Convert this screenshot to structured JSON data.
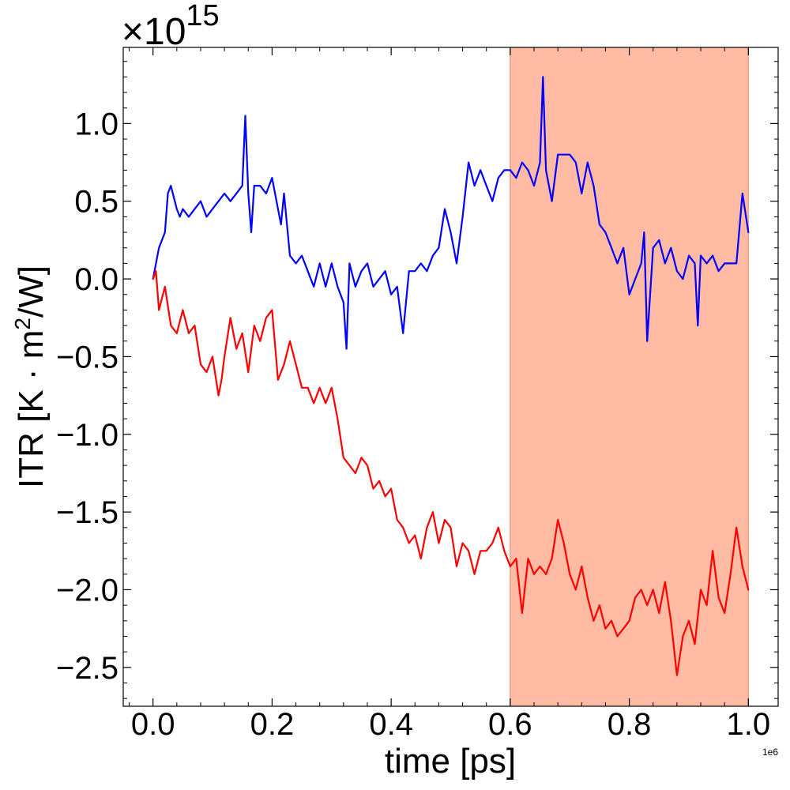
{
  "chart_data": {
    "type": "line",
    "xlabel": "time [ps]",
    "ylabel_main": "ITR [K · m",
    "ylabel_sup": "2",
    "ylabel_tail": "/W]",
    "y_multiplier_base": "×10",
    "y_multiplier_exp": "15",
    "x_offset_text": "1e6",
    "x_ticks": [
      {
        "value": 0.0,
        "label": "0.0"
      },
      {
        "value": 0.2,
        "label": "0.2"
      },
      {
        "value": 0.4,
        "label": "0.4"
      },
      {
        "value": 0.6,
        "label": "0.6"
      },
      {
        "value": 0.8,
        "label": "0.8"
      },
      {
        "value": 1.0,
        "label": "1.0"
      }
    ],
    "y_ticks": [
      {
        "value": 1.0,
        "label": "1.0"
      },
      {
        "value": 0.5,
        "label": "0.5"
      },
      {
        "value": 0.0,
        "label": "0.0"
      },
      {
        "value": -0.5,
        "label": "−0.5"
      },
      {
        "value": -1.0,
        "label": "−1.0"
      },
      {
        "value": -1.5,
        "label": "−1.5"
      },
      {
        "value": -2.0,
        "label": "−2.0"
      },
      {
        "value": -2.5,
        "label": "−2.5"
      }
    ],
    "xlim": [
      -0.05,
      1.05
    ],
    "ylim": [
      -2.75,
      1.49
    ],
    "grid": false,
    "shaded_region": {
      "x_start": 0.6,
      "x_end": 1.0,
      "color": "#ffbba4"
    },
    "series": [
      {
        "color": "#0000ff",
        "x": [
          0.0,
          0.01,
          0.02,
          0.025,
          0.03,
          0.04,
          0.045,
          0.05,
          0.06,
          0.07,
          0.08,
          0.09,
          0.1,
          0.11,
          0.12,
          0.13,
          0.14,
          0.15,
          0.155,
          0.16,
          0.165,
          0.17,
          0.18,
          0.19,
          0.2,
          0.21,
          0.215,
          0.22,
          0.23,
          0.24,
          0.25,
          0.26,
          0.27,
          0.28,
          0.29,
          0.3,
          0.31,
          0.32,
          0.325,
          0.33,
          0.34,
          0.35,
          0.36,
          0.37,
          0.38,
          0.39,
          0.4,
          0.41,
          0.42,
          0.43,
          0.44,
          0.45,
          0.46,
          0.47,
          0.48,
          0.49,
          0.5,
          0.51,
          0.52,
          0.53,
          0.54,
          0.55,
          0.56,
          0.57,
          0.58,
          0.59,
          0.6,
          0.61,
          0.62,
          0.63,
          0.64,
          0.65,
          0.655,
          0.66,
          0.67,
          0.68,
          0.69,
          0.7,
          0.71,
          0.72,
          0.73,
          0.74,
          0.75,
          0.76,
          0.77,
          0.78,
          0.79,
          0.8,
          0.81,
          0.82,
          0.825,
          0.83,
          0.84,
          0.85,
          0.86,
          0.87,
          0.88,
          0.89,
          0.9,
          0.91,
          0.915,
          0.92,
          0.93,
          0.94,
          0.95,
          0.96,
          0.97,
          0.98,
          0.99,
          1.0
        ],
        "values": [
          0.0,
          0.2,
          0.3,
          0.55,
          0.6,
          0.45,
          0.4,
          0.45,
          0.4,
          0.45,
          0.5,
          0.4,
          0.45,
          0.5,
          0.55,
          0.5,
          0.55,
          0.6,
          1.05,
          0.55,
          0.3,
          0.6,
          0.6,
          0.55,
          0.65,
          0.45,
          0.35,
          0.55,
          0.15,
          0.1,
          0.15,
          0.05,
          -0.05,
          0.1,
          -0.05,
          0.1,
          -0.05,
          -0.15,
          -0.45,
          0.1,
          -0.05,
          0.05,
          0.1,
          -0.05,
          0.0,
          0.05,
          -0.1,
          -0.05,
          -0.35,
          0.05,
          0.05,
          0.1,
          0.05,
          0.15,
          0.2,
          0.45,
          0.3,
          0.1,
          0.4,
          0.75,
          0.6,
          0.7,
          0.6,
          0.5,
          0.65,
          0.7,
          0.7,
          0.65,
          0.75,
          0.7,
          0.6,
          0.75,
          1.3,
          0.7,
          0.5,
          0.8,
          0.8,
          0.8,
          0.75,
          0.55,
          0.75,
          0.6,
          0.35,
          0.3,
          0.2,
          0.1,
          0.2,
          -0.1,
          0.0,
          0.1,
          0.3,
          -0.4,
          0.2,
          0.25,
          0.1,
          0.2,
          0.05,
          0.0,
          0.15,
          0.1,
          -0.3,
          0.15,
          0.1,
          0.15,
          0.05,
          0.1,
          0.1,
          0.1,
          0.55,
          0.3
        ]
      },
      {
        "color": "#ff0000",
        "x": [
          0.0,
          0.005,
          0.01,
          0.02,
          0.03,
          0.04,
          0.05,
          0.06,
          0.07,
          0.08,
          0.09,
          0.1,
          0.11,
          0.115,
          0.12,
          0.13,
          0.14,
          0.15,
          0.16,
          0.17,
          0.18,
          0.19,
          0.2,
          0.21,
          0.22,
          0.23,
          0.24,
          0.25,
          0.26,
          0.27,
          0.28,
          0.29,
          0.3,
          0.31,
          0.32,
          0.33,
          0.34,
          0.35,
          0.36,
          0.37,
          0.38,
          0.39,
          0.4,
          0.41,
          0.42,
          0.43,
          0.44,
          0.45,
          0.46,
          0.47,
          0.48,
          0.49,
          0.5,
          0.51,
          0.52,
          0.53,
          0.54,
          0.55,
          0.56,
          0.57,
          0.58,
          0.59,
          0.6,
          0.61,
          0.62,
          0.63,
          0.64,
          0.65,
          0.66,
          0.67,
          0.68,
          0.69,
          0.7,
          0.71,
          0.72,
          0.73,
          0.74,
          0.75,
          0.76,
          0.77,
          0.78,
          0.79,
          0.8,
          0.81,
          0.82,
          0.83,
          0.84,
          0.85,
          0.86,
          0.87,
          0.88,
          0.89,
          0.9,
          0.91,
          0.92,
          0.93,
          0.94,
          0.95,
          0.96,
          0.97,
          0.98,
          0.99,
          1.0
        ],
        "values": [
          0.0,
          0.05,
          -0.2,
          -0.05,
          -0.3,
          -0.35,
          -0.2,
          -0.35,
          -0.3,
          -0.55,
          -0.6,
          -0.5,
          -0.75,
          -0.65,
          -0.5,
          -0.25,
          -0.45,
          -0.35,
          -0.6,
          -0.3,
          -0.4,
          -0.25,
          -0.2,
          -0.65,
          -0.55,
          -0.4,
          -0.55,
          -0.7,
          -0.7,
          -0.8,
          -0.7,
          -0.8,
          -0.7,
          -0.9,
          -1.15,
          -1.2,
          -1.25,
          -1.15,
          -1.2,
          -1.35,
          -1.3,
          -1.4,
          -1.35,
          -1.55,
          -1.6,
          -1.7,
          -1.65,
          -1.8,
          -1.6,
          -1.5,
          -1.7,
          -1.55,
          -1.6,
          -1.85,
          -1.7,
          -1.75,
          -1.9,
          -1.75,
          -1.75,
          -1.7,
          -1.6,
          -1.75,
          -1.85,
          -1.8,
          -2.15,
          -1.8,
          -1.9,
          -1.85,
          -1.9,
          -1.8,
          -1.55,
          -1.7,
          -1.9,
          -2.0,
          -1.85,
          -2.05,
          -2.2,
          -2.1,
          -2.25,
          -2.2,
          -2.3,
          -2.25,
          -2.2,
          -2.05,
          -2.0,
          -2.1,
          -2.0,
          -2.15,
          -1.95,
          -2.2,
          -2.55,
          -2.3,
          -2.2,
          -2.35,
          -2.0,
          -2.1,
          -1.75,
          -2.05,
          -2.15,
          -1.9,
          -1.6,
          -1.85,
          -2.0
        ]
      }
    ]
  }
}
